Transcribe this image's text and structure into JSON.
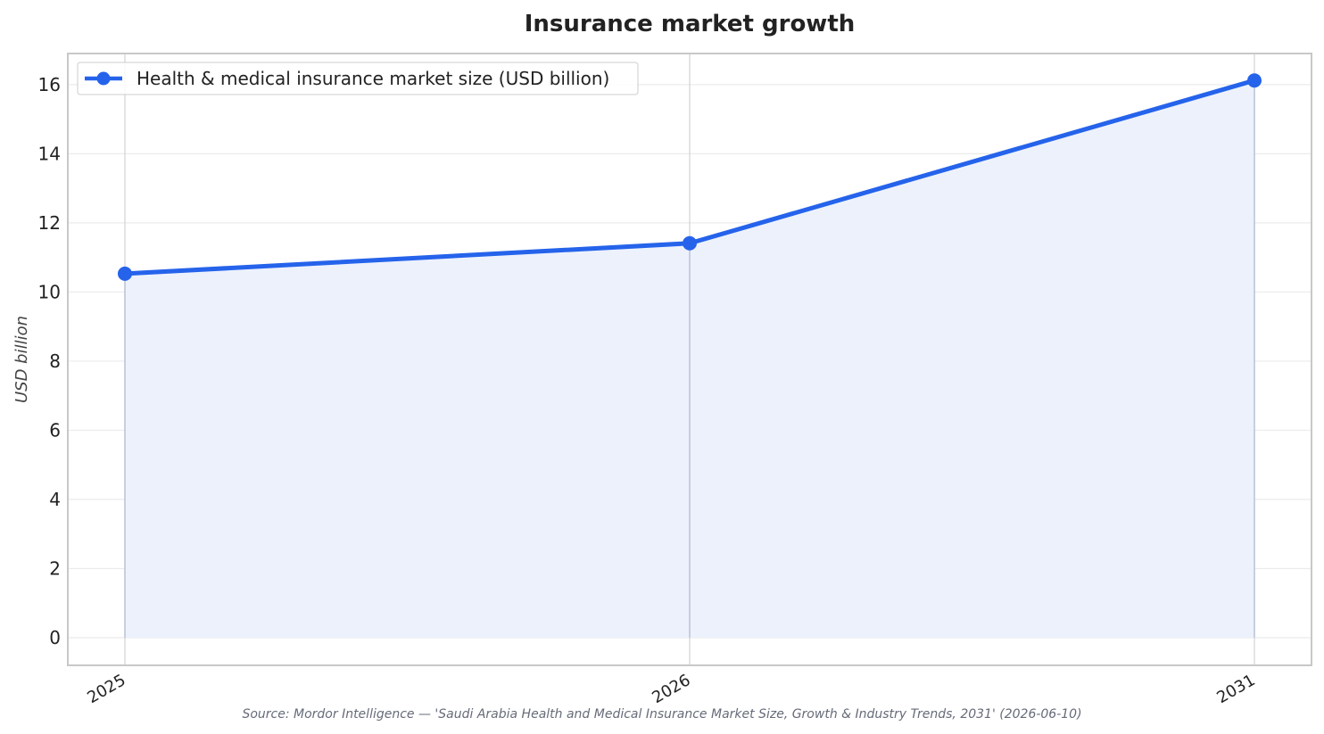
{
  "chart_data": {
    "type": "area",
    "title": "Insurance market growth",
    "xlabel": "",
    "ylabel": "USD billion",
    "categories": [
      "2025",
      "2026",
      "2031"
    ],
    "series": [
      {
        "name": "Health & medical insurance market size (USD billion)",
        "values": [
          10.53,
          11.41,
          16.12
        ]
      }
    ],
    "ylim": [
      -0.8,
      16.9
    ],
    "yticks": [
      0,
      2,
      4,
      6,
      8,
      10,
      12,
      14,
      16
    ],
    "grid": true,
    "legend_position": "top-left",
    "colors": {
      "line": "#2563eb",
      "fill": "#ecf1fc",
      "grid": "#ebebeb",
      "frame": "#c8c8c8"
    },
    "source_note": "Source: Mordor Intelligence — 'Saudi Arabia Health and Medical Insurance Market Size, Growth & Industry Trends, 2031' (2026-06-10)"
  }
}
